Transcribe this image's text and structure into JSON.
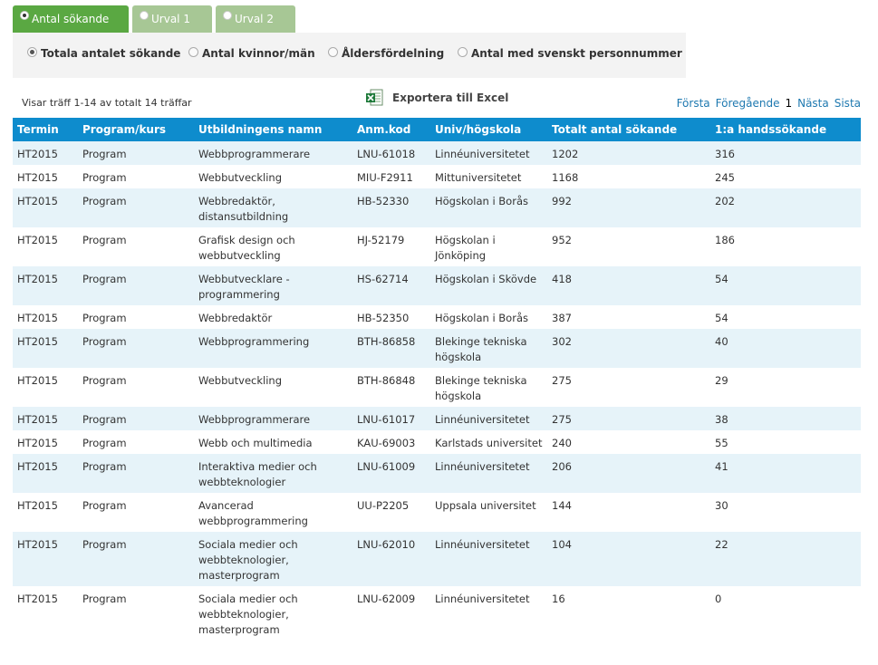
{
  "tabs": [
    {
      "label": "Antal sökande",
      "active": true
    },
    {
      "label": "Urval 1",
      "active": false
    },
    {
      "label": "Urval 2",
      "active": false
    }
  ],
  "options": [
    {
      "label": "Totala antalet sökande",
      "selected": true
    },
    {
      "label": "Antal kvinnor/män",
      "selected": false
    },
    {
      "label": "Åldersfördelning",
      "selected": false
    },
    {
      "label": "Antal med svenskt personnummer",
      "selected": false
    }
  ],
  "summary": "Visar träff 1-14 av totalt 14 träffar",
  "export_label": "Exportera till Excel",
  "pagination": {
    "first": "Första",
    "prev": "Föregående",
    "current": "1",
    "next": "Nästa",
    "last": "Sista"
  },
  "table": {
    "headers": [
      "Termin",
      "Program/kurs",
      "Utbildningens namn",
      "Anm.kod",
      "Univ/högskola",
      "Totalt antal sökande",
      "1:a handssökande"
    ],
    "rows": [
      [
        "HT2015",
        "Program",
        "Webbprogrammerare",
        "LNU-61018",
        "Linnéuniversitetet",
        "1202",
        "316"
      ],
      [
        "HT2015",
        "Program",
        "Webbutveckling",
        "MIU-F2911",
        "Mittuniversitetet",
        "1168",
        "245"
      ],
      [
        "HT2015",
        "Program",
        "Webbredaktör, distansutbildning",
        "HB-52330",
        "Högskolan i Borås",
        "992",
        "202"
      ],
      [
        "HT2015",
        "Program",
        "Grafisk design och webbutveckling",
        "HJ-52179",
        "Högskolan i Jönköping",
        "952",
        "186"
      ],
      [
        "HT2015",
        "Program",
        "Webbutvecklare - programmering",
        "HS-62714",
        "Högskolan i Skövde",
        "418",
        "54"
      ],
      [
        "HT2015",
        "Program",
        "Webbredaktör",
        "HB-52350",
        "Högskolan i Borås",
        "387",
        "54"
      ],
      [
        "HT2015",
        "Program",
        "Webbprogrammering",
        "BTH-86858",
        "Blekinge tekniska högskola",
        "302",
        "40"
      ],
      [
        "HT2015",
        "Program",
        "Webbutveckling",
        "BTH-86848",
        "Blekinge tekniska högskola",
        "275",
        "29"
      ],
      [
        "HT2015",
        "Program",
        "Webbprogrammerare",
        "LNU-61017",
        "Linnéuniversitetet",
        "275",
        "38"
      ],
      [
        "HT2015",
        "Program",
        "Webb och multimedia",
        "KAU-69003",
        "Karlstads universitet",
        "240",
        "55"
      ],
      [
        "HT2015",
        "Program",
        "Interaktiva medier och webbteknologier",
        "LNU-61009",
        "Linnéuniversitetet",
        "206",
        "41"
      ],
      [
        "HT2015",
        "Program",
        "Avancerad webbprogrammering",
        "UU-P2205",
        "Uppsala universitet",
        "144",
        "30"
      ],
      [
        "HT2015",
        "Program",
        "Sociala medier och webbteknologier, masterprogram",
        "LNU-62010",
        "Linnéuniversitetet",
        "104",
        "22"
      ],
      [
        "HT2015",
        "Program",
        "Sociala medier och webbteknologier, masterprogram",
        "LNU-62009",
        "Linnéuniversitetet",
        "16",
        "0"
      ]
    ]
  },
  "colors": {
    "tab_active": "#5aa842",
    "tab_inactive": "#a7c795",
    "header_bg": "#0e8ccd",
    "row_alt_bg": "#e6f3f9",
    "link": "#1f79b0"
  },
  "icons": {
    "export": "excel-icon"
  }
}
